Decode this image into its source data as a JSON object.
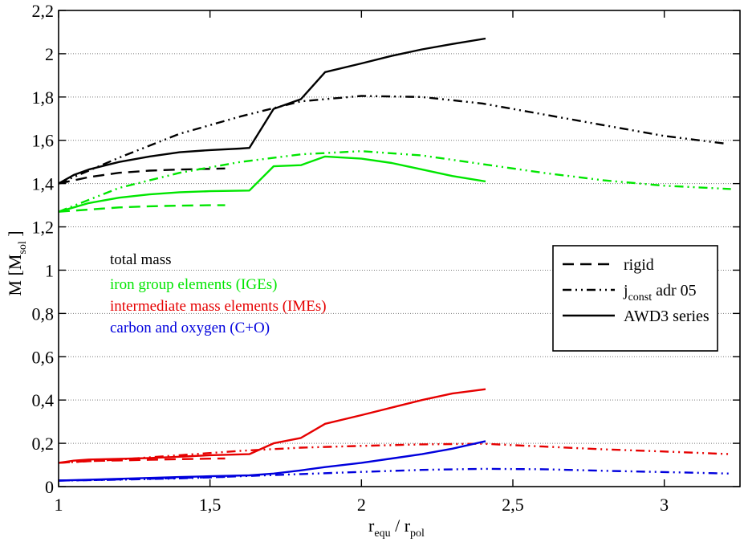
{
  "chart_data": {
    "type": "line",
    "xlabel": {
      "main": "r",
      "sub1": "equ",
      "sep": " / r",
      "sub2": "pol"
    },
    "ylabel": {
      "main": "M  [M",
      "sub": "sol",
      "end": " ]"
    },
    "xlim": [
      1,
      3.25
    ],
    "ylim": [
      0,
      2.2
    ],
    "x_ticks": [
      {
        "value": 1,
        "label": "1"
      },
      {
        "value": 1.5,
        "label": "1,5"
      },
      {
        "value": 2,
        "label": "2"
      },
      {
        "value": 2.5,
        "label": "2,5"
      },
      {
        "value": 3,
        "label": "3"
      }
    ],
    "y_ticks": [
      {
        "value": 0,
        "label": "0"
      },
      {
        "value": 0.2,
        "label": "0,2"
      },
      {
        "value": 0.4,
        "label": "0,4"
      },
      {
        "value": 0.6,
        "label": "0,6"
      },
      {
        "value": 0.8,
        "label": "0,8"
      },
      {
        "value": 1,
        "label": "1"
      },
      {
        "value": 1.2,
        "label": "1,2"
      },
      {
        "value": 1.4,
        "label": "1,4"
      },
      {
        "value": 1.6,
        "label": "1,6"
      },
      {
        "value": 1.8,
        "label": "1,8"
      },
      {
        "value": 2,
        "label": "2"
      },
      {
        "value": 2.2,
        "label": "2,2"
      }
    ],
    "grid": "horizontal dotted",
    "colors": {
      "total": "#000000",
      "ige": "#00e600",
      "ime": "#e60000",
      "co": "#0000dd"
    },
    "annotations": [
      {
        "text": "total mass",
        "component": "total"
      },
      {
        "text": "iron group elements   (IGEs)",
        "component": "ige"
      },
      {
        "text": "intermediate mass elements   (IMEs)",
        "component": "ime"
      },
      {
        "text": "carbon and oxygen   (C+O)",
        "component": "co"
      }
    ],
    "legend": {
      "position": "right",
      "entries": [
        {
          "style": "dashed",
          "text": "rigid"
        },
        {
          "style": "dashdotdot",
          "text_main": "j",
          "text_sub": "const",
          "text_end": " adr 05"
        },
        {
          "style": "solid",
          "text": "AWD3 series"
        }
      ]
    },
    "series": [
      {
        "name": "total mass - rigid",
        "component": "total",
        "style": "dashed",
        "x": [
          1,
          1.1,
          1.2,
          1.3,
          1.4,
          1.5,
          1.55
        ],
        "y": [
          1.4,
          1.43,
          1.45,
          1.46,
          1.465,
          1.468,
          1.47
        ]
      },
      {
        "name": "total mass - j_const adr 05",
        "component": "total",
        "style": "dashdotdot",
        "x": [
          1,
          1.2,
          1.4,
          1.6,
          1.8,
          2.0,
          2.2,
          2.4,
          2.6,
          2.8,
          3.0,
          3.2
        ],
        "y": [
          1.4,
          1.52,
          1.63,
          1.71,
          1.78,
          1.805,
          1.8,
          1.77,
          1.72,
          1.67,
          1.62,
          1.585
        ]
      },
      {
        "name": "total mass - AWD3 series",
        "component": "total",
        "style": "solid",
        "x": [
          1,
          1.05,
          1.1,
          1.2,
          1.3,
          1.4,
          1.5,
          1.6,
          1.63,
          1.71,
          1.8,
          1.88,
          2.0,
          2.1,
          2.2,
          2.3,
          2.41
        ],
        "y": [
          1.4,
          1.44,
          1.465,
          1.5,
          1.525,
          1.545,
          1.555,
          1.562,
          1.565,
          1.745,
          1.79,
          1.915,
          1.955,
          1.99,
          2.02,
          2.045,
          2.07
        ]
      },
      {
        "name": "IGEs - rigid",
        "component": "ige",
        "style": "dashed",
        "x": [
          1,
          1.1,
          1.2,
          1.3,
          1.4,
          1.5,
          1.55
        ],
        "y": [
          1.27,
          1.28,
          1.29,
          1.295,
          1.298,
          1.3,
          1.3
        ]
      },
      {
        "name": "IGEs - j_const adr 05",
        "component": "ige",
        "style": "dashdotdot",
        "x": [
          1,
          1.2,
          1.4,
          1.6,
          1.8,
          2.0,
          2.2,
          2.4,
          2.6,
          2.8,
          3.0,
          3.22
        ],
        "y": [
          1.27,
          1.38,
          1.45,
          1.5,
          1.535,
          1.55,
          1.53,
          1.49,
          1.45,
          1.415,
          1.39,
          1.375
        ]
      },
      {
        "name": "IGEs - AWD3 series",
        "component": "ige",
        "style": "solid",
        "x": [
          1,
          1.05,
          1.1,
          1.2,
          1.3,
          1.4,
          1.5,
          1.63,
          1.71,
          1.8,
          1.88,
          2.0,
          2.1,
          2.2,
          2.3,
          2.41
        ],
        "y": [
          1.27,
          1.29,
          1.31,
          1.335,
          1.35,
          1.36,
          1.365,
          1.368,
          1.48,
          1.485,
          1.525,
          1.515,
          1.495,
          1.465,
          1.435,
          1.41
        ]
      },
      {
        "name": "IMEs - rigid",
        "component": "ime",
        "style": "dashed",
        "x": [
          1,
          1.1,
          1.2,
          1.3,
          1.4,
          1.5,
          1.55
        ],
        "y": [
          0.11,
          0.118,
          0.121,
          0.124,
          0.127,
          0.129,
          0.13
        ]
      },
      {
        "name": "IMEs - j_const adr 05",
        "component": "ime",
        "style": "dashdotdot",
        "x": [
          1,
          1.2,
          1.4,
          1.6,
          1.8,
          2.0,
          2.2,
          2.4,
          2.6,
          2.8,
          3.0,
          3.22
        ],
        "y": [
          0.11,
          0.125,
          0.145,
          0.165,
          0.18,
          0.188,
          0.195,
          0.198,
          0.185,
          0.172,
          0.162,
          0.15
        ]
      },
      {
        "name": "IMEs - AWD3 series",
        "component": "ime",
        "style": "solid",
        "x": [
          1,
          1.05,
          1.1,
          1.2,
          1.3,
          1.4,
          1.5,
          1.63,
          1.71,
          1.8,
          1.88,
          2.0,
          2.1,
          2.2,
          2.3,
          2.41
        ],
        "y": [
          0.11,
          0.12,
          0.125,
          0.128,
          0.132,
          0.138,
          0.145,
          0.15,
          0.2,
          0.225,
          0.29,
          0.33,
          0.365,
          0.4,
          0.43,
          0.45
        ]
      },
      {
        "name": "C+O - rigid",
        "component": "co",
        "style": "dashed",
        "x": [
          1,
          1.1,
          1.2,
          1.3,
          1.4,
          1.5,
          1.55
        ],
        "y": [
          0.028,
          0.03,
          0.033,
          0.036,
          0.04,
          0.043,
          0.045
        ]
      },
      {
        "name": "C+O - j_const adr 05",
        "component": "co",
        "style": "dashdotdot",
        "x": [
          1,
          1.2,
          1.4,
          1.6,
          1.8,
          2.0,
          2.2,
          2.4,
          2.6,
          2.8,
          3.0,
          3.22
        ],
        "y": [
          0.028,
          0.032,
          0.038,
          0.048,
          0.058,
          0.068,
          0.077,
          0.082,
          0.08,
          0.073,
          0.067,
          0.06
        ]
      },
      {
        "name": "C+O - AWD3 series",
        "component": "co",
        "style": "solid",
        "x": [
          1,
          1.1,
          1.2,
          1.3,
          1.4,
          1.5,
          1.63,
          1.71,
          1.8,
          1.88,
          2.0,
          2.1,
          2.2,
          2.3,
          2.41
        ],
        "y": [
          0.028,
          0.032,
          0.036,
          0.04,
          0.044,
          0.048,
          0.052,
          0.06,
          0.075,
          0.09,
          0.11,
          0.13,
          0.15,
          0.175,
          0.21
        ]
      }
    ]
  }
}
